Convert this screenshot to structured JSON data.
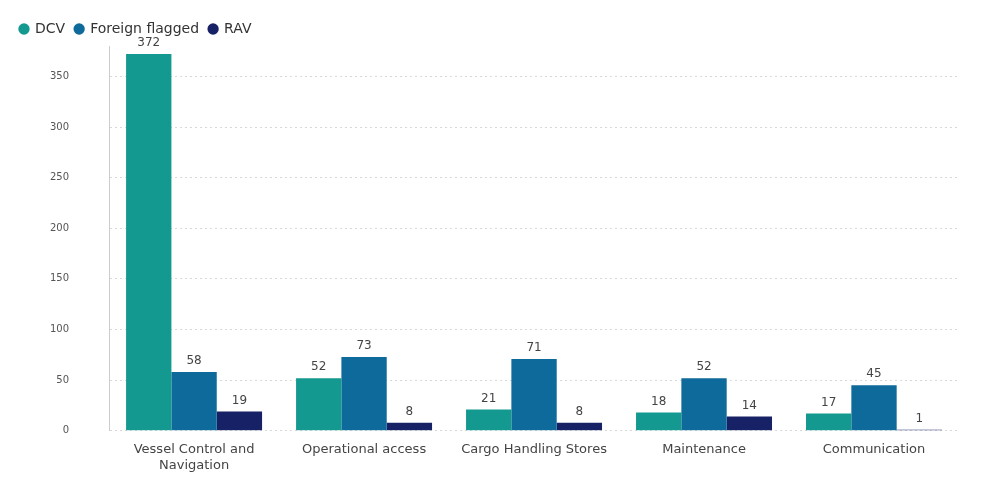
{
  "chart_data": {
    "type": "bar",
    "categories": [
      "Vessel Control and Navigation",
      "Operational access",
      "Cargo Handling Stores",
      "Maintenance",
      "Communication"
    ],
    "series": [
      {
        "name": "DCV",
        "color": "#13998f",
        "values": [
          372,
          52,
          21,
          18,
          17
        ]
      },
      {
        "name": "Foreign flagged",
        "color": "#0e6a9a",
        "values": [
          58,
          73,
          71,
          52,
          45
        ]
      },
      {
        "name": "RAV",
        "color": "#162166",
        "values": [
          19,
          8,
          8,
          14,
          1
        ]
      }
    ],
    "ylim": [
      0,
      380
    ],
    "yticks": [
      0,
      50,
      100,
      150,
      200,
      250,
      300,
      350
    ],
    "grid": true,
    "legend": "top-left",
    "data_labels": true
  }
}
